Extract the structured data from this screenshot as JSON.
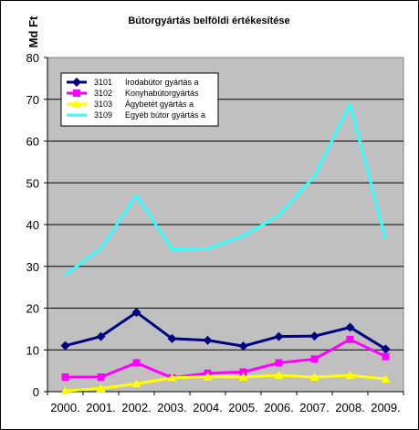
{
  "chart_data": {
    "type": "line",
    "title": "Bútorgyártás belföldi értékesítése",
    "ylabel": "Md Ft",
    "xlabel": "",
    "categories": [
      "2000.",
      "2001.",
      "2002.",
      "2003.",
      "2004.",
      "2005.",
      "2006.",
      "2007.",
      "2008.",
      "2009."
    ],
    "ylim": [
      0,
      80
    ],
    "yticks": [
      0,
      10,
      20,
      30,
      40,
      50,
      60,
      70,
      80
    ],
    "grid": true,
    "legend_position": "top-left",
    "plot_background": "#c0c0c0",
    "series": [
      {
        "code": "3101",
        "name": "Irodabútor gyártás a",
        "color": "#000080",
        "marker": "diamond",
        "values": [
          11,
          13.2,
          19,
          12.7,
          12.3,
          10.9,
          13.2,
          13.3,
          15.4,
          10.2
        ]
      },
      {
        "code": "3102",
        "name": "Konyhabútorgyártás",
        "color": "#ff00ff",
        "marker": "square",
        "values": [
          3.5,
          3.5,
          6.9,
          3.3,
          4.4,
          4.7,
          6.9,
          7.8,
          12.5,
          8.4
        ]
      },
      {
        "code": "3103",
        "name": "Ágybetét gyártás a",
        "color": "#ffff00",
        "marker": "triangle",
        "values": [
          0.2,
          0.8,
          1.9,
          3.3,
          3.6,
          3.5,
          3.9,
          3.5,
          3.9,
          3.0
        ]
      },
      {
        "code": "3109",
        "name": "Egyéb bútor gyártás a",
        "color": "#33ffff",
        "marker": "none",
        "values": [
          28,
          34.3,
          47,
          34,
          34.2,
          37.3,
          42.2,
          51.6,
          68.8,
          36.5
        ]
      }
    ]
  }
}
